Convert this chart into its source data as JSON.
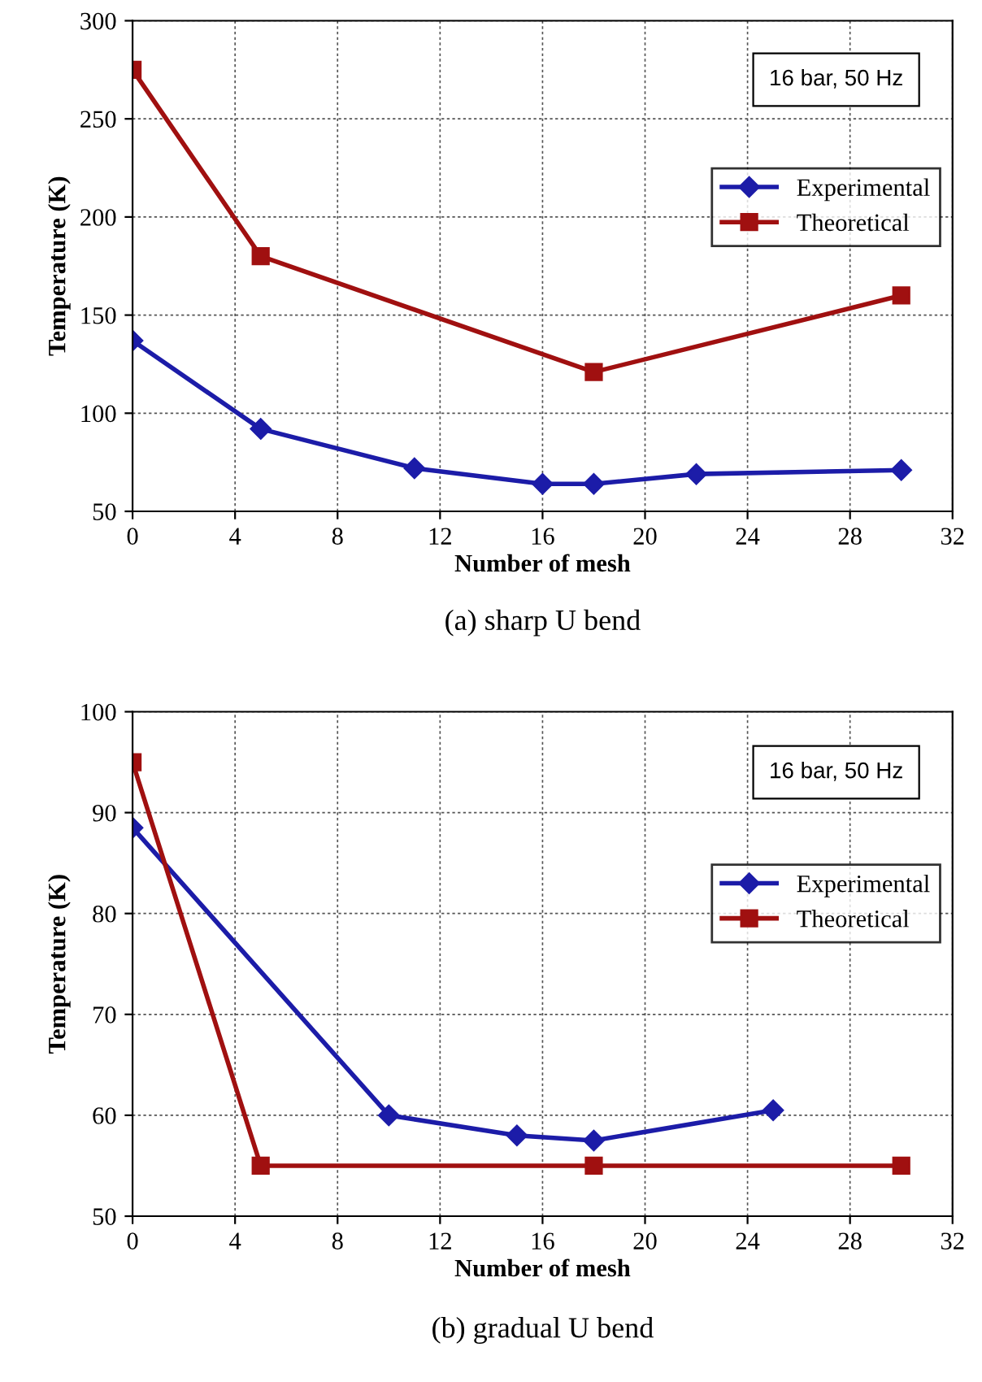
{
  "chart_data": [
    {
      "type": "line",
      "xlabel": "Number of mesh",
      "ylabel": "Temperature (K)",
      "xlim": [
        0,
        32
      ],
      "xticks": [
        0,
        4,
        8,
        12,
        16,
        20,
        24,
        28,
        32
      ],
      "ylim": [
        50,
        300
      ],
      "yticks": [
        50,
        100,
        150,
        200,
        250,
        300
      ],
      "grid": true,
      "legend": "right",
      "annotations": [
        "16 bar, 50 Hz",
        "(a) sharp U bend"
      ],
      "series": [
        {
          "name": "Experimental",
          "color": "#1c1ca8",
          "marker": "diamond",
          "x": [
            0,
            5,
            11,
            16,
            18,
            22,
            30
          ],
          "values": [
            137,
            92,
            72,
            64,
            64,
            69,
            71
          ]
        },
        {
          "name": "Theoretical",
          "color": "#a01010",
          "marker": "square",
          "x": [
            0,
            5,
            18,
            30
          ],
          "values": [
            275,
            180,
            121,
            160
          ]
        }
      ]
    },
    {
      "type": "line",
      "xlabel": "Number of mesh",
      "ylabel": "Temperature (K)",
      "xlim": [
        0,
        32
      ],
      "xticks": [
        0,
        4,
        8,
        12,
        16,
        20,
        24,
        28,
        32
      ],
      "ylim": [
        50,
        100
      ],
      "yticks": [
        50,
        60,
        70,
        80,
        90,
        100
      ],
      "grid": true,
      "legend": "right",
      "annotations": [
        "16 bar, 50 Hz",
        "(b) gradual U bend"
      ],
      "series": [
        {
          "name": "Experimental",
          "color": "#1c1ca8",
          "marker": "diamond",
          "x": [
            0,
            10,
            15,
            18,
            25
          ],
          "values": [
            88.5,
            60,
            58,
            57.5,
            60.5
          ]
        },
        {
          "name": "Theoretical",
          "color": "#a01010",
          "marker": "square",
          "x": [
            0,
            5,
            18,
            30
          ],
          "values": [
            95,
            55,
            55,
            55
          ]
        }
      ]
    }
  ]
}
